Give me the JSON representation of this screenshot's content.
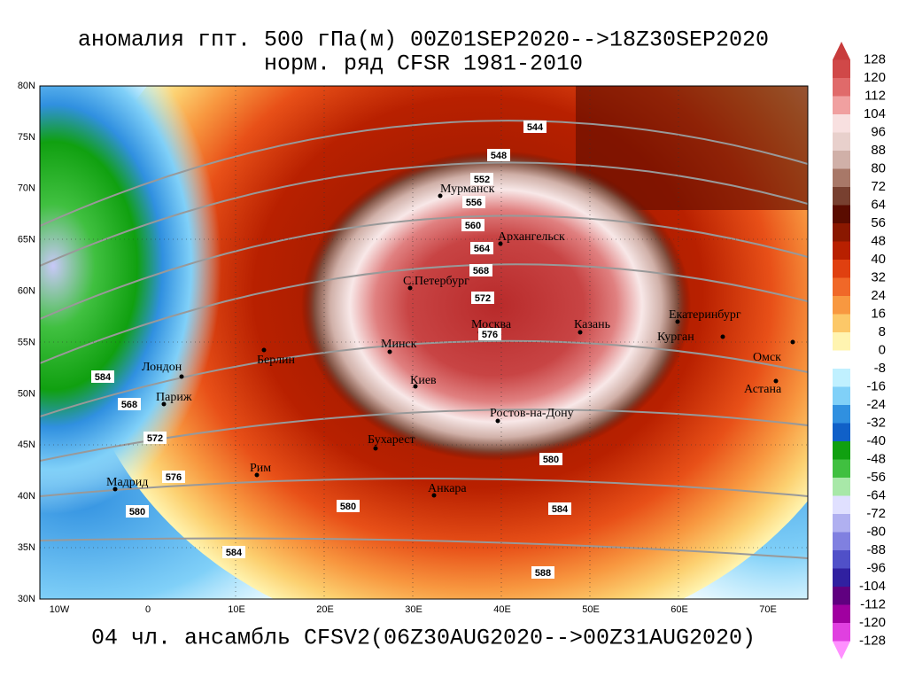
{
  "header": {
    "title": "аномалия гпт. 500 гПа(м) 00Z01SEP2020-->18Z30SEP2020",
    "subtitle": "норм. ряд CFSR 1981-2010"
  },
  "footer": {
    "caption": "04 чл. ансамбль CFSV2(06Z30AUG2020-->00Z31AUG2020)"
  },
  "map": {
    "lon_labels": [
      "10W",
      "0",
      "10E",
      "20E",
      "30E",
      "40E",
      "50E",
      "60E",
      "70E"
    ],
    "lat_labels": [
      "80N",
      "75N",
      "70N",
      "65N",
      "60N",
      "55N",
      "50N",
      "45N",
      "40N",
      "35N",
      "30N"
    ],
    "cities": [
      "Мурманск",
      "Архангельск",
      "С.Петербург",
      "Москва",
      "Казань",
      "Екатеринбург",
      "Курган",
      "Омск",
      "Астана",
      "Минск",
      "Киев",
      "Берлин",
      "Лондон",
      "Париж",
      "Ростов-на-Дону",
      "Бухарест",
      "Рим",
      "Мадрид",
      "Анкара"
    ],
    "contour_labels": [
      "544",
      "548",
      "552",
      "556",
      "560",
      "564",
      "568",
      "572",
      "576",
      "584",
      "568",
      "572",
      "576",
      "580",
      "584",
      "580",
      "584",
      "588",
      "580"
    ]
  },
  "colorbar": {
    "labels": [
      128,
      120,
      112,
      104,
      96,
      88,
      80,
      72,
      64,
      56,
      48,
      40,
      32,
      24,
      16,
      8,
      0,
      -8,
      -16,
      -24,
      -32,
      -40,
      -48,
      -56,
      -64,
      -72,
      -80,
      -88,
      -96,
      -104,
      -112,
      -120,
      -128
    ],
    "colors": [
      "#c83c3c",
      "#d04848",
      "#e06a6a",
      "#f0a0a0",
      "#f8e0e0",
      "#e8d0cc",
      "#d0b0a8",
      "#a87868",
      "#784030",
      "#5a0c00",
      "#8a1800",
      "#b82000",
      "#e04010",
      "#f06828",
      "#f89840",
      "#fcc868",
      "#fff4b0",
      "#ffffff",
      "#c0f0ff",
      "#80d0f8",
      "#3090e0",
      "#1060c8",
      "#10a010",
      "#40c040",
      "#a8e8a8",
      "#e0e0ff",
      "#b0b0f0",
      "#8080e0",
      "#5050c8",
      "#3020a0",
      "#600080",
      "#a000a0",
      "#e040e0",
      "#ff90ff"
    ]
  }
}
